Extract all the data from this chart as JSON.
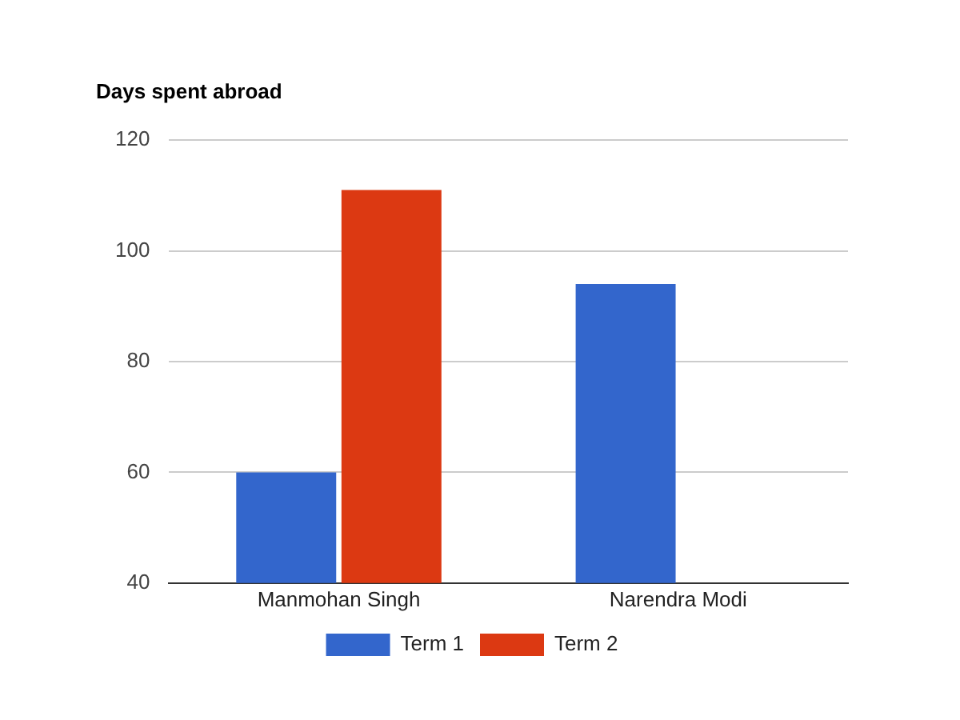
{
  "chart_data": {
    "type": "bar",
    "title": "Days spent abroad",
    "categories": [
      "Manmohan Singh",
      "Narendra Modi"
    ],
    "series": [
      {
        "name": "Term 1",
        "color": "#3366cc",
        "values": [
          60,
          94
        ]
      },
      {
        "name": "Term 2",
        "color": "#dc3912",
        "values": [
          111,
          null
        ]
      }
    ],
    "ylim": [
      40,
      120
    ],
    "yticks": [
      40,
      60,
      80,
      100,
      120
    ],
    "grid": "y",
    "legend": "bottom"
  }
}
